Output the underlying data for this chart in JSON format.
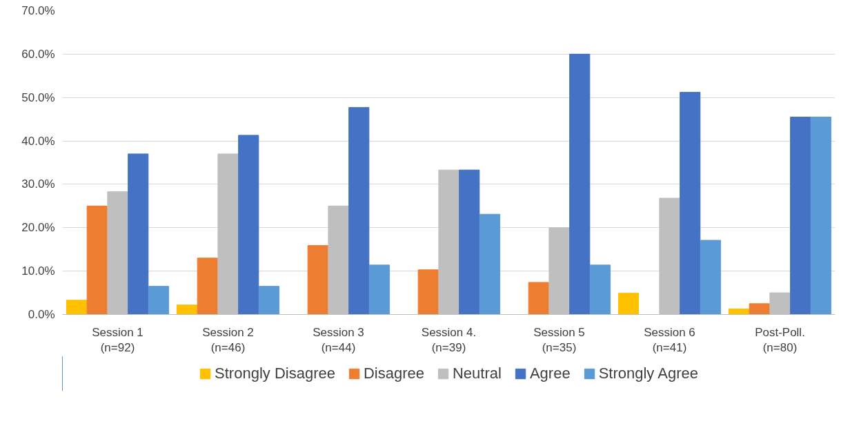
{
  "chart_data": {
    "type": "bar",
    "categories": [
      "Session 1\n(n=92)",
      "Session 2\n(n=46)",
      "Session 3\n(n=44)",
      "Session 4.\n(n=39)",
      "Session 5\n(n=35)",
      "Session 6\n(n=41)",
      "Post-Poll.\n(n=80)"
    ],
    "series": [
      {
        "name": "Strongly Disagree",
        "color": "#ffc000",
        "values": [
          3.3,
          2.2,
          0,
          0,
          0,
          4.9,
          1.3
        ]
      },
      {
        "name": "Disagree",
        "color": "#ed7d31",
        "values": [
          25.0,
          13.0,
          15.9,
          10.3,
          7.4,
          0,
          2.5
        ]
      },
      {
        "name": "Neutral",
        "color": "#bfbfbf",
        "values": [
          28.3,
          37.0,
          25.0,
          33.3,
          20.0,
          26.8,
          5.0
        ]
      },
      {
        "name": "Agree",
        "color": "#4472c4",
        "values": [
          37.0,
          41.3,
          47.7,
          33.3,
          60.0,
          51.2,
          45.5
        ]
      },
      {
        "name": "Strongly Agree",
        "color": "#5b9bd5",
        "values": [
          6.5,
          6.5,
          11.4,
          23.1,
          11.4,
          17.1,
          45.5
        ]
      }
    ],
    "ylim": [
      0,
      70
    ],
    "yticks": [
      {
        "value": 0,
        "label": "0.0%"
      },
      {
        "value": 10,
        "label": "10.0%"
      },
      {
        "value": 20,
        "label": "20.0%"
      },
      {
        "value": 30,
        "label": "30.0%"
      },
      {
        "value": 40,
        "label": "40.0%"
      },
      {
        "value": 50,
        "label": "50.0%"
      },
      {
        "value": 60,
        "label": "60.0%"
      },
      {
        "value": 70,
        "label": "70.0%"
      }
    ],
    "grid": "y",
    "legend": "bottom"
  }
}
